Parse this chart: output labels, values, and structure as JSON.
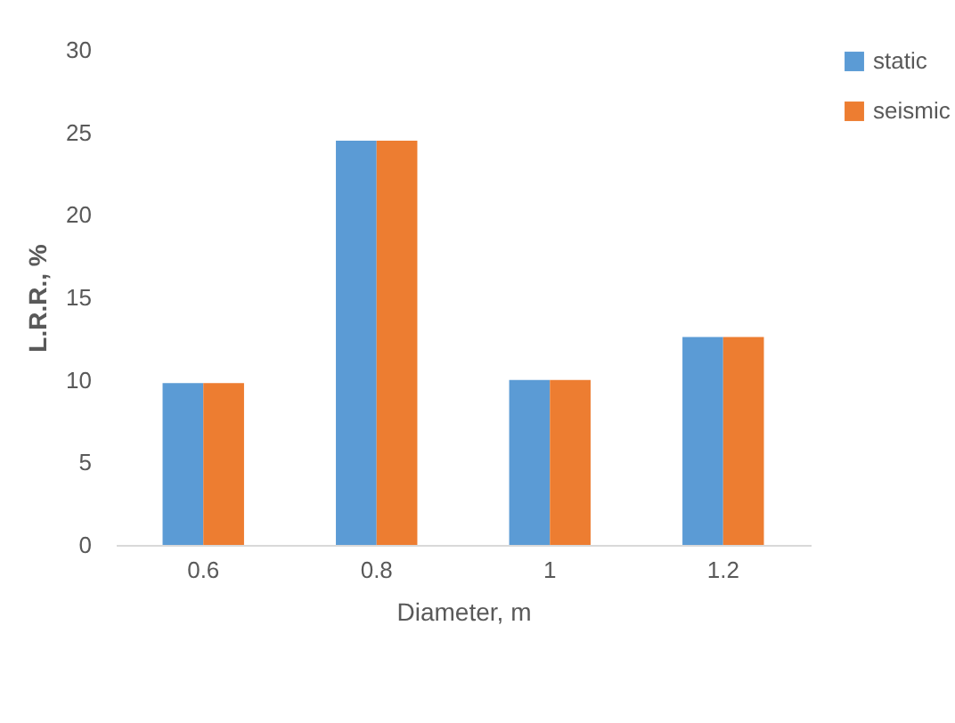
{
  "chart_data": {
    "type": "bar",
    "xlabel": "Diameter, m",
    "ylabel": "L.R.R., %",
    "categories": [
      "0.6",
      "0.8",
      "1",
      "1.2"
    ],
    "series": [
      {
        "name": "static",
        "color": "#5b9bd5",
        "values": [
          9.8,
          24.5,
          10.0,
          12.6
        ]
      },
      {
        "name": "seismic",
        "color": "#ed7d31",
        "values": [
          9.8,
          24.5,
          10.0,
          12.6
        ]
      }
    ],
    "ylim": [
      0,
      30
    ],
    "yticks": [
      0,
      5,
      10,
      15,
      20,
      25,
      30
    ],
    "grid": false,
    "legend": "right"
  }
}
